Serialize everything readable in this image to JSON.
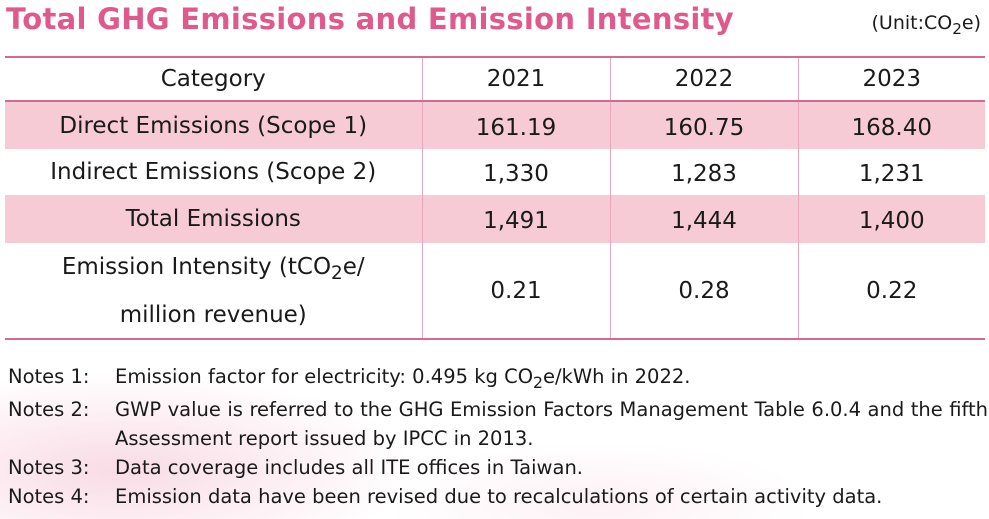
{
  "title": "Total GHG Emissions and Emission Intensity",
  "unit": {
    "prefix": "(Unit:CO",
    "sub": "2",
    "suffix": "e)"
  },
  "table": {
    "headers": [
      "Category",
      "2021",
      "2022",
      "2023"
    ],
    "rows": [
      {
        "category": "Direct Emissions (Scope 1)",
        "values": [
          "161.19",
          "160.75",
          "168.40"
        ]
      },
      {
        "category": "Indirect Emissions (Scope 2)",
        "values": [
          "1,330",
          "1,283",
          "1,231"
        ]
      },
      {
        "category": "Total Emissions",
        "values": [
          "1,491",
          "1,444",
          "1,400"
        ]
      },
      {
        "category_line1_prefix": "Emission Intensity (tCO",
        "category_line1_sub": "2",
        "category_line1_suffix": "e/",
        "category_line2": "million revenue)",
        "values": [
          "0.21",
          "0.28",
          "0.22"
        ]
      }
    ]
  },
  "notes": [
    {
      "label": "Notes 1:",
      "text_prefix": "Emission factor for electricity: 0.495 kg CO",
      "text_sub": "2",
      "text_suffix": "e/kWh in 2022."
    },
    {
      "label": "Notes 2:",
      "text": "GWP value is referred to the GHG Emission Factors Management Table 6.0.4 and the fifth Assessment report issued by IPCC in 2013."
    },
    {
      "label": "Notes 3:",
      "text": "Data coverage includes all ITE offices in Taiwan."
    },
    {
      "label": "Notes 4:",
      "text": "Emission data have been revised due to recalculations of certain activity data."
    }
  ],
  "colors": {
    "title": "#e0598d",
    "row_shade": "#f7cbd5",
    "rule": "#d46a92",
    "divider": "#e9a7bd"
  }
}
